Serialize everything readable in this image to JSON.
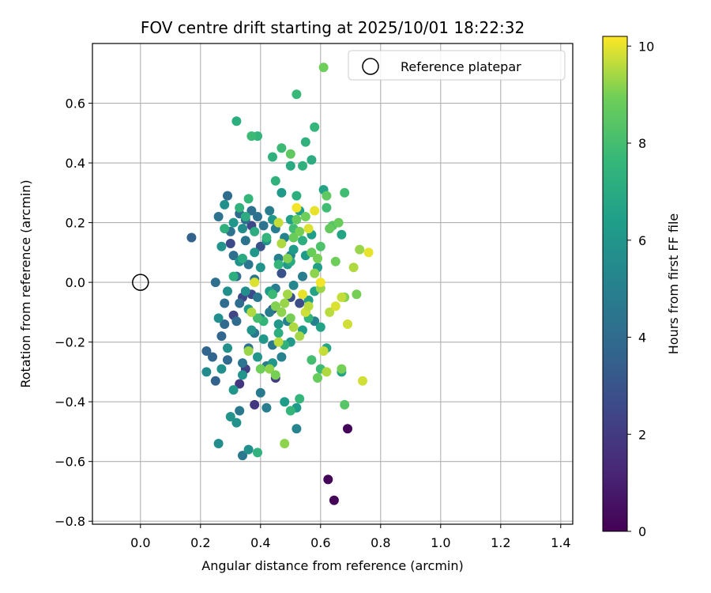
{
  "chart_data": {
    "type": "scatter",
    "title": "FOV centre drift starting at 2025/10/01 18:22:32",
    "xlabel": "Angular distance from reference (arcmin)",
    "ylabel": "Rotation from reference (arcmin)",
    "xlim": [
      -0.16,
      1.44
    ],
    "ylim": [
      -0.81,
      0.8
    ],
    "xticks": [
      0.0,
      0.2,
      0.4,
      0.6,
      0.8,
      1.0,
      1.2,
      1.4
    ],
    "xtick_labels": [
      "0.0",
      "0.2",
      "0.4",
      "0.6",
      "0.8",
      "1.0",
      "1.2",
      "1.4"
    ],
    "yticks": [
      -0.8,
      -0.6,
      -0.4,
      -0.2,
      0.0,
      0.2,
      0.4,
      0.6
    ],
    "ytick_labels": [
      "−0.8",
      "−0.6",
      "−0.4",
      "−0.2",
      "0.0",
      "0.2",
      "0.4",
      "0.6"
    ],
    "grid": true,
    "legend": {
      "location": "top-right",
      "label": "Reference platepar"
    },
    "reference_point": {
      "x": 0.0,
      "y": 0.0,
      "marker": "open-circle"
    },
    "colorbar": {
      "label": "Hours from first FF file",
      "colormap": "viridis",
      "min": 0,
      "max": 10.2,
      "ticks": [
        0,
        2,
        4,
        6,
        8,
        10
      ],
      "tick_labels": [
        "0",
        "2",
        "4",
        "6",
        "8",
        "10"
      ]
    },
    "points": [
      [
        0.69,
        -0.49,
        0.1
      ],
      [
        0.625,
        -0.66,
        0.1
      ],
      [
        0.645,
        -0.73,
        0.1
      ],
      [
        0.33,
        -0.34,
        1.9
      ],
      [
        0.38,
        -0.41,
        1.9
      ],
      [
        0.45,
        -0.32,
        2.0
      ],
      [
        0.35,
        -0.29,
        2.2
      ],
      [
        0.31,
        -0.11,
        2.4
      ],
      [
        0.34,
        -0.05,
        2.5
      ],
      [
        0.3,
        0.13,
        2.6
      ],
      [
        0.37,
        0.19,
        2.5
      ],
      [
        0.44,
        -0.09,
        2.7
      ],
      [
        0.5,
        -0.05,
        2.8
      ],
      [
        0.4,
        0.12,
        2.9
      ],
      [
        0.47,
        0.03,
        2.9
      ],
      [
        0.53,
        -0.07,
        2.7
      ],
      [
        0.37,
        -0.04,
        2.6
      ],
      [
        0.17,
        0.15,
        3.6
      ],
      [
        0.25,
        -0.33,
        3.6
      ],
      [
        0.22,
        -0.23,
        3.7
      ],
      [
        0.24,
        -0.25,
        3.8
      ],
      [
        0.27,
        -0.18,
        3.8
      ],
      [
        0.29,
        -0.26,
        3.9
      ],
      [
        0.28,
        -0.14,
        3.9
      ],
      [
        0.32,
        -0.13,
        4.0
      ],
      [
        0.33,
        -0.07,
        4.1
      ],
      [
        0.32,
        0.02,
        4.1
      ],
      [
        0.31,
        0.09,
        4.2
      ],
      [
        0.3,
        0.17,
        4.3
      ],
      [
        0.29,
        0.29,
        4.0
      ],
      [
        0.33,
        0.23,
        4.0
      ],
      [
        0.35,
        0.21,
        4.1
      ],
      [
        0.37,
        0.24,
        4.2
      ],
      [
        0.39,
        0.22,
        4.3
      ],
      [
        0.35,
        0.14,
        4.4
      ],
      [
        0.36,
        0.06,
        4.5
      ],
      [
        0.38,
        0.01,
        4.5
      ],
      [
        0.39,
        -0.05,
        4.6
      ],
      [
        0.4,
        -0.12,
        4.7
      ],
      [
        0.38,
        -0.17,
        4.5
      ],
      [
        0.36,
        -0.22,
        4.4
      ],
      [
        0.34,
        -0.27,
        4.5
      ],
      [
        0.33,
        -0.43,
        4.6
      ],
      [
        0.4,
        -0.37,
        4.7
      ],
      [
        0.42,
        -0.28,
        4.8
      ],
      [
        0.44,
        -0.21,
        4.6
      ],
      [
        0.43,
        -0.1,
        4.8
      ],
      [
        0.45,
        -0.02,
        4.9
      ],
      [
        0.46,
        0.08,
        5.0
      ],
      [
        0.45,
        0.18,
        4.9
      ],
      [
        0.43,
        0.24,
        4.8
      ],
      [
        0.48,
        0.15,
        5.1
      ],
      [
        0.5,
        0.09,
        5.2
      ],
      [
        0.51,
        -0.01,
        5.3
      ],
      [
        0.49,
        -0.13,
        5.0
      ],
      [
        0.47,
        -0.25,
        5.1
      ],
      [
        0.25,
        0.0,
        4.2
      ],
      [
        0.26,
        0.22,
        4.3
      ],
      [
        0.34,
        -0.58,
        4.6
      ],
      [
        0.42,
        -0.42,
        4.9
      ],
      [
        0.52,
        -0.49,
        5.2
      ],
      [
        0.54,
        0.02,
        4.9
      ],
      [
        0.55,
        -0.1,
        5.2
      ],
      [
        0.58,
        -0.13,
        5.0
      ],
      [
        0.28,
        -0.07,
        4.1
      ],
      [
        0.41,
        0.19,
        4.4
      ],
      [
        0.26,
        -0.54,
        5.6
      ],
      [
        0.22,
        -0.3,
        5.5
      ],
      [
        0.26,
        -0.12,
        5.7
      ],
      [
        0.27,
        -0.29,
        5.8
      ],
      [
        0.27,
        0.12,
        5.9
      ],
      [
        0.28,
        0.26,
        5.7
      ],
      [
        0.29,
        -0.22,
        5.8
      ],
      [
        0.3,
        -0.45,
        5.9
      ],
      [
        0.31,
        -0.36,
        6.0
      ],
      [
        0.32,
        -0.47,
        5.8
      ],
      [
        0.33,
        0.07,
        5.8
      ],
      [
        0.34,
        0.18,
        5.6
      ],
      [
        0.35,
        -0.03,
        5.7
      ],
      [
        0.36,
        -0.56,
        5.8
      ],
      [
        0.37,
        -0.16,
        5.9
      ],
      [
        0.38,
        0.1,
        6.0
      ],
      [
        0.39,
        -0.25,
        6.0
      ],
      [
        0.4,
        0.05,
        5.9
      ],
      [
        0.41,
        -0.19,
        6.1
      ],
      [
        0.42,
        0.14,
        5.8
      ],
      [
        0.43,
        -0.03,
        6.2
      ],
      [
        0.44,
        0.21,
        6.0
      ],
      [
        0.46,
        -0.14,
        6.1
      ],
      [
        0.48,
        -0.4,
        6.3
      ],
      [
        0.49,
        0.06,
        6.2
      ],
      [
        0.5,
        -0.2,
        6.1
      ],
      [
        0.51,
        0.11,
        6.3
      ],
      [
        0.52,
        -0.42,
        6.2
      ],
      [
        0.53,
        0.24,
        6.4
      ],
      [
        0.54,
        -0.16,
        6.3
      ],
      [
        0.55,
        0.09,
        6.3
      ],
      [
        0.56,
        -0.06,
        6.5
      ],
      [
        0.57,
        0.16,
        6.4
      ],
      [
        0.58,
        -0.03,
        6.6
      ],
      [
        0.59,
        0.05,
        6.5
      ],
      [
        0.6,
        -0.15,
        6.6
      ],
      [
        0.61,
        0.31,
        6.7
      ],
      [
        0.62,
        -0.22,
        6.8
      ],
      [
        0.67,
        0.16,
        6.7
      ],
      [
        0.67,
        -0.3,
        6.6
      ],
      [
        0.29,
        -0.03,
        5.7
      ],
      [
        0.31,
        0.2,
        6.0
      ],
      [
        0.36,
        -0.09,
        6.2
      ],
      [
        0.44,
        -0.27,
        6.0
      ],
      [
        0.47,
        0.3,
        6.2
      ],
      [
        0.5,
        0.21,
        6.4
      ],
      [
        0.34,
        -0.31,
        5.9
      ],
      [
        0.32,
        0.54,
        7.2
      ],
      [
        0.39,
        0.49,
        7.5
      ],
      [
        0.44,
        0.42,
        7.3
      ],
      [
        0.45,
        0.34,
        7.4
      ],
      [
        0.47,
        0.45,
        7.8
      ],
      [
        0.5,
        0.39,
        7.0
      ],
      [
        0.52,
        0.29,
        7.2
      ],
      [
        0.52,
        0.63,
        7.7
      ],
      [
        0.54,
        0.39,
        7.3
      ],
      [
        0.55,
        0.47,
        7.3
      ],
      [
        0.57,
        0.41,
        7.1
      ],
      [
        0.58,
        0.52,
        7.6
      ],
      [
        0.39,
        -0.57,
        7.4
      ],
      [
        0.5,
        -0.43,
        7.6
      ],
      [
        0.28,
        0.18,
        7.3
      ],
      [
        0.33,
        0.25,
        7.4
      ],
      [
        0.36,
        0.28,
        7.6
      ],
      [
        0.37,
        0.49,
        7.8
      ],
      [
        0.42,
        0.15,
        7.5
      ],
      [
        0.45,
        -0.08,
        7.4
      ],
      [
        0.48,
        -0.21,
        7.3
      ],
      [
        0.51,
        0.18,
        7.9
      ],
      [
        0.44,
        -0.04,
        7.8
      ],
      [
        0.35,
        0.22,
        7.1
      ],
      [
        0.34,
        0.08,
        7.0
      ],
      [
        0.31,
        0.02,
        7.2
      ],
      [
        0.46,
        0.06,
        7.6
      ],
      [
        0.5,
        0.07,
        7.0
      ],
      [
        0.54,
        0.14,
        7.2
      ],
      [
        0.56,
        -0.12,
        7.5
      ],
      [
        0.6,
        -0.29,
        7.8
      ],
      [
        0.46,
        -0.17,
        7.2
      ],
      [
        0.53,
        -0.39,
        7.6
      ],
      [
        0.38,
        0.17,
        7.1
      ],
      [
        0.41,
        -0.13,
        7.5
      ],
      [
        0.62,
        0.25,
        7.9
      ],
      [
        0.68,
        0.3,
        7.9
      ],
      [
        0.57,
        -0.26,
        8.0
      ],
      [
        0.6,
        0.12,
        8.2
      ],
      [
        0.64,
        0.19,
        8.4
      ],
      [
        0.68,
        -0.41,
        8.4
      ],
      [
        0.39,
        -0.12,
        8.0
      ],
      [
        0.5,
        0.43,
        8.6
      ],
      [
        0.59,
        -0.32,
        8.8
      ],
      [
        0.61,
        0.72,
        8.9
      ],
      [
        0.62,
        0.29,
        8.6
      ],
      [
        0.63,
        0.18,
        8.7
      ],
      [
        0.65,
        0.07,
        8.9
      ],
      [
        0.66,
        0.2,
        8.8
      ],
      [
        0.67,
        -0.29,
        9.0
      ],
      [
        0.68,
        -0.05,
        9.1
      ],
      [
        0.51,
        0.15,
        8.8
      ],
      [
        0.52,
        0.21,
        8.7
      ],
      [
        0.53,
        0.17,
        9.0
      ],
      [
        0.55,
        0.22,
        8.9
      ],
      [
        0.57,
        0.1,
        8.8
      ],
      [
        0.58,
        0.03,
        9.2
      ],
      [
        0.59,
        0.08,
        9.0
      ],
      [
        0.6,
        -0.02,
        9.3
      ],
      [
        0.45,
        -0.08,
        9.1
      ],
      [
        0.47,
        -0.1,
        9.2
      ],
      [
        0.48,
        -0.07,
        9.3
      ],
      [
        0.49,
        -0.04,
        9.4
      ],
      [
        0.5,
        -0.12,
        9.0
      ],
      [
        0.51,
        -0.15,
        9.5
      ],
      [
        0.43,
        -0.29,
        9.2
      ],
      [
        0.45,
        -0.31,
        9.0
      ],
      [
        0.36,
        -0.23,
        9.3
      ],
      [
        0.37,
        -0.1,
        9.5
      ],
      [
        0.4,
        -0.29,
        8.9
      ],
      [
        0.46,
        -0.2,
        9.6
      ],
      [
        0.48,
        -0.54,
        9.2
      ],
      [
        0.53,
        -0.18,
        9.4
      ],
      [
        0.55,
        -0.1,
        9.8
      ],
      [
        0.56,
        -0.08,
        9.6
      ],
      [
        0.61,
        -0.23,
        9.7
      ],
      [
        0.62,
        -0.3,
        9.5
      ],
      [
        0.63,
        -0.1,
        9.6
      ],
      [
        0.65,
        -0.08,
        9.9
      ],
      [
        0.67,
        -0.05,
        9.7
      ],
      [
        0.69,
        -0.14,
        9.8
      ],
      [
        0.71,
        0.05,
        9.5
      ],
      [
        0.72,
        -0.04,
        9.0
      ],
      [
        0.73,
        0.11,
        9.3
      ],
      [
        0.74,
        -0.33,
        9.8
      ],
      [
        0.76,
        0.1,
        10.0
      ],
      [
        0.52,
        0.25,
        10.1
      ],
      [
        0.54,
        -0.04,
        10.0
      ],
      [
        0.56,
        0.18,
        9.9
      ],
      [
        0.58,
        0.24,
        10.0
      ],
      [
        0.6,
        0.0,
        10.1
      ],
      [
        0.46,
        0.2,
        9.7
      ],
      [
        0.47,
        0.13,
        9.5
      ],
      [
        0.49,
        0.08,
        9.1
      ],
      [
        0.38,
        0.0,
        9.9
      ]
    ]
  }
}
